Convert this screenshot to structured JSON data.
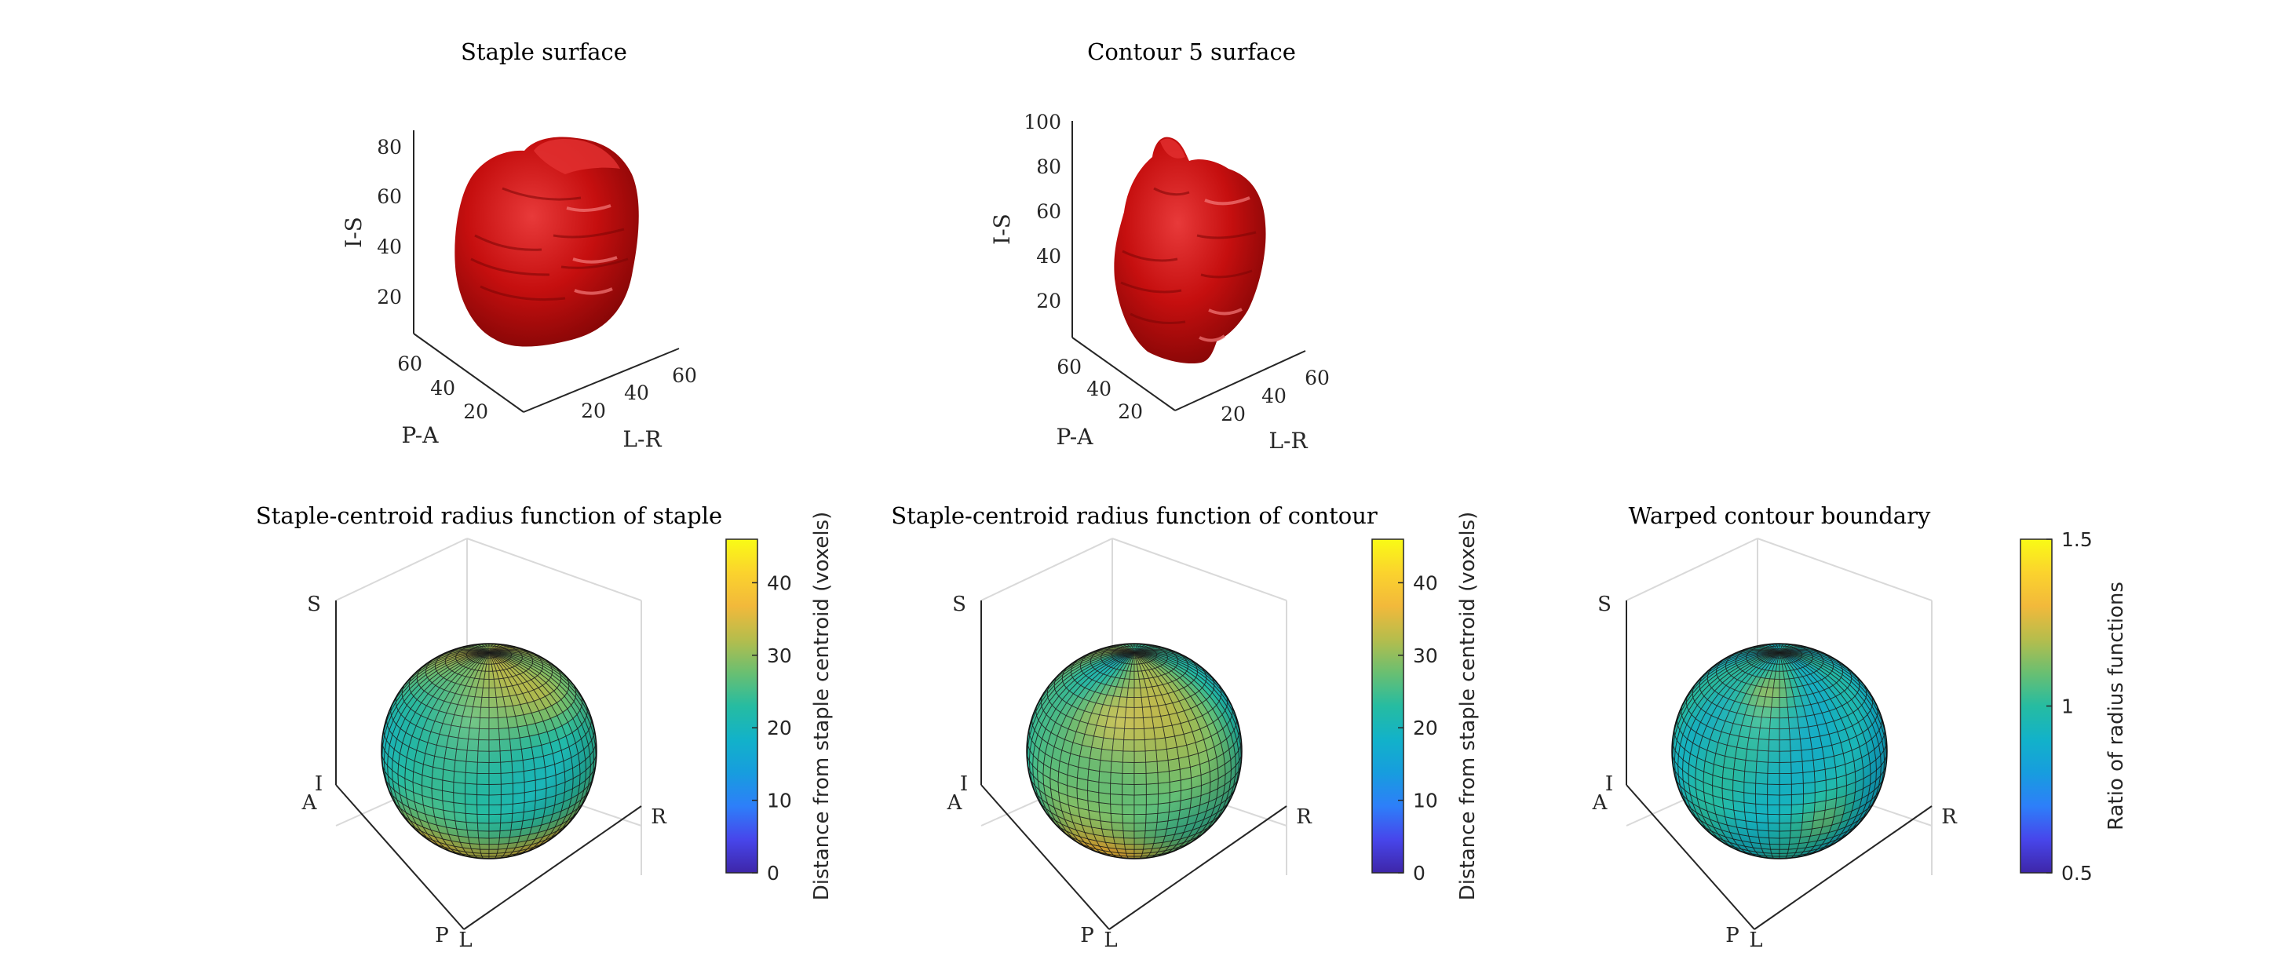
{
  "figure": {
    "colors": {
      "surface": "#c80f0f",
      "surface_dark": "#7a0606",
      "surface_light": "#f04848",
      "axis": "#262626",
      "grid": "#d0d0d0"
    },
    "colormap": [
      "#3e26a8",
      "#4746eb",
      "#2d7ff9",
      "#179dde",
      "#12b2c9",
      "#26bca1",
      "#6abf71",
      "#b6bd4c",
      "#f2b93b",
      "#fbd32d",
      "#f9fb15"
    ]
  },
  "chart_data": [
    {
      "type": "surface3d",
      "title": "Staple surface",
      "xlabel": "L-R",
      "ylabel": "P-A",
      "zlabel": "I-S",
      "x_ticks": [
        "20",
        "40",
        "60"
      ],
      "y_ticks": [
        "20",
        "40",
        "60"
      ],
      "z_ticks": [
        "20",
        "40",
        "60",
        "80"
      ],
      "xlim": [
        5,
        70
      ],
      "ylim": [
        5,
        70
      ],
      "zlim": [
        5,
        90
      ]
    },
    {
      "type": "surface3d",
      "title": "Contour 5 surface",
      "xlabel": "L-R",
      "ylabel": "P-A",
      "zlabel": "I-S",
      "x_ticks": [
        "20",
        "40",
        "60"
      ],
      "y_ticks": [
        "20",
        "40",
        "60"
      ],
      "z_ticks": [
        "20",
        "40",
        "60",
        "80",
        "100"
      ],
      "xlim": [
        5,
        70
      ],
      "ylim": [
        5,
        70
      ],
      "zlim": [
        5,
        100
      ]
    },
    {
      "type": "sphere_heatmap",
      "title": "Staple-centroid radius function of staple",
      "axis_labels": [
        "S",
        "I",
        "A",
        "P",
        "L",
        "R"
      ],
      "colorbar": {
        "label": "Distance from staple centroid (voxels)",
        "ticks": [
          "0",
          "10",
          "20",
          "30",
          "40"
        ],
        "tick_values": [
          0,
          10,
          20,
          30,
          40
        ],
        "range": [
          0,
          46
        ]
      },
      "value_range": [
        25,
        40
      ]
    },
    {
      "type": "sphere_heatmap",
      "title": "Staple-centroid radius function of contour",
      "axis_labels": [
        "S",
        "I",
        "A",
        "P",
        "L",
        "R"
      ],
      "colorbar": {
        "label": "Distance from staple centroid (voxels)",
        "ticks": [
          "0",
          "10",
          "20",
          "30",
          "40"
        ],
        "tick_values": [
          0,
          10,
          20,
          30,
          40
        ],
        "range": [
          0,
          46
        ]
      },
      "value_range": [
        24,
        42
      ]
    },
    {
      "type": "sphere_heatmap",
      "title": "Warped contour boundary",
      "axis_labels": [
        "S",
        "I",
        "A",
        "P",
        "L",
        "R"
      ],
      "colorbar": {
        "label": "Ratio of radius functions",
        "ticks": [
          "0.5",
          "1",
          "1.5"
        ],
        "tick_values": [
          0.5,
          1,
          1.5
        ],
        "range": [
          0.5,
          1.5
        ]
      },
      "value_range": [
        0.85,
        1.35
      ]
    }
  ]
}
